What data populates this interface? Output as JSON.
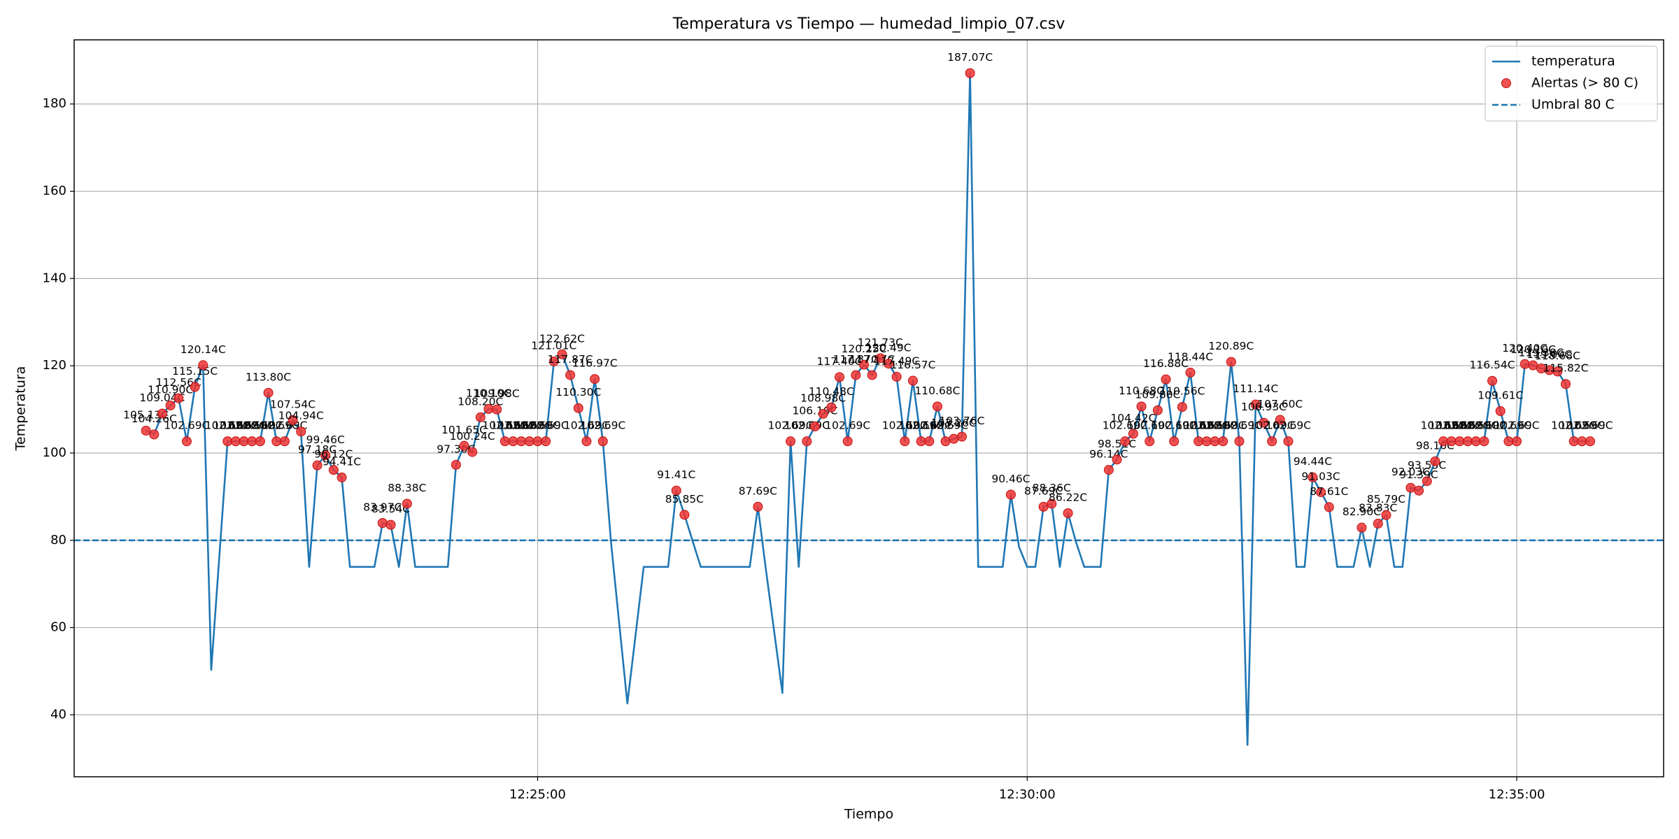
{
  "chart_data": {
    "type": "line",
    "title": "Temperatura vs Tiempo — humedad_limpio_07.csv",
    "xlabel": "Tiempo",
    "ylabel": "Temperatura",
    "x": [
      "12:21:00",
      "12:21:05",
      "12:21:10",
      "12:21:15",
      "12:21:20",
      "12:21:25",
      "12:21:30",
      "12:21:35",
      "12:21:40",
      "12:21:45",
      "12:21:50",
      "12:21:55",
      "12:22:00",
      "12:22:05",
      "12:22:10",
      "12:22:15",
      "12:22:20",
      "12:22:25",
      "12:22:30",
      "12:22:35",
      "12:22:40",
      "12:22:45",
      "12:22:50",
      "12:22:55",
      "12:23:00",
      "12:23:05",
      "12:23:10",
      "12:23:15",
      "12:23:20",
      "12:23:25",
      "12:23:30",
      "12:23:35",
      "12:23:40",
      "12:23:45",
      "12:23:50",
      "12:23:55",
      "12:24:00",
      "12:24:05",
      "12:24:10",
      "12:24:15",
      "12:24:20",
      "12:24:25",
      "12:24:30",
      "12:24:35",
      "12:24:40",
      "12:24:45",
      "12:24:50",
      "12:24:55",
      "12:25:00",
      "12:25:05",
      "12:25:10",
      "12:25:15",
      "12:25:20",
      "12:25:25",
      "12:25:30",
      "12:25:35",
      "12:25:40",
      "12:25:45",
      "12:25:50",
      "12:25:55",
      "12:26:00",
      "12:26:05",
      "12:26:10",
      "12:26:15",
      "12:26:20",
      "12:26:25",
      "12:26:30",
      "12:26:35",
      "12:26:40",
      "12:26:45",
      "12:26:50",
      "12:26:55",
      "12:27:00",
      "12:27:05",
      "12:27:10",
      "12:27:15",
      "12:27:20",
      "12:27:25",
      "12:27:30",
      "12:27:35",
      "12:27:40",
      "12:27:45",
      "12:27:50",
      "12:27:55",
      "12:28:00",
      "12:28:05",
      "12:28:10",
      "12:28:15",
      "12:28:20",
      "12:28:25",
      "12:28:30",
      "12:28:35",
      "12:28:40",
      "12:28:45",
      "12:28:50",
      "12:28:55",
      "12:29:00",
      "12:29:05",
      "12:29:10",
      "12:29:15",
      "12:29:20",
      "12:29:25",
      "12:29:30",
      "12:29:35",
      "12:29:40",
      "12:29:45",
      "12:29:50",
      "12:29:55",
      "12:30:00",
      "12:30:05",
      "12:30:10",
      "12:30:15",
      "12:30:20",
      "12:30:25",
      "12:30:30",
      "12:30:35",
      "12:30:40",
      "12:30:45",
      "12:30:50",
      "12:30:55",
      "12:31:00",
      "12:31:05",
      "12:31:10",
      "12:31:15",
      "12:31:20",
      "12:31:25",
      "12:31:30",
      "12:31:35",
      "12:31:40",
      "12:31:45",
      "12:31:50",
      "12:31:55",
      "12:32:00",
      "12:32:05",
      "12:32:10",
      "12:32:15",
      "12:32:20",
      "12:32:25",
      "12:32:30",
      "12:32:35",
      "12:32:40",
      "12:32:45",
      "12:32:50",
      "12:32:55",
      "12:33:00",
      "12:33:05",
      "12:33:10",
      "12:33:15",
      "12:33:20",
      "12:33:25",
      "12:33:30",
      "12:33:35",
      "12:33:40",
      "12:33:45",
      "12:33:50",
      "12:33:55",
      "12:34:00",
      "12:34:05",
      "12:34:10",
      "12:34:15",
      "12:34:20",
      "12:34:25",
      "12:34:30",
      "12:34:35",
      "12:34:40",
      "12:34:45",
      "12:34:50",
      "12:34:55",
      "12:35:00",
      "12:35:05",
      "12:35:10",
      "12:35:15",
      "12:35:20",
      "12:35:25",
      "12:35:30",
      "12:35:35",
      "12:35:40",
      "12:35:45"
    ],
    "series": [
      {
        "name": "temperatura",
        "type": "line",
        "color": "#1f77b4",
        "values": [
          105.13,
          104.26,
          109.04,
          110.9,
          112.56,
          102.69,
          115.15,
          120.14,
          50.3,
          76.5,
          102.69,
          102.69,
          102.69,
          102.69,
          102.69,
          113.8,
          102.69,
          102.69,
          107.54,
          104.94,
          73.9,
          97.18,
          99.46,
          96.12,
          94.41,
          73.9,
          73.9,
          73.9,
          73.9,
          83.97,
          83.54,
          73.9,
          88.38,
          73.9,
          73.9,
          73.9,
          73.9,
          73.9,
          97.3,
          101.65,
          100.24,
          108.2,
          110.1,
          109.98,
          102.69,
          102.69,
          102.69,
          102.69,
          102.69,
          102.69,
          121.01,
          122.62,
          117.87,
          110.3,
          102.69,
          116.97,
          102.69,
          79.5,
          61,
          42.6,
          58.2,
          73.9,
          73.9,
          73.9,
          73.9,
          91.41,
          85.85,
          79.8,
          73.9,
          73.9,
          73.9,
          73.9,
          73.9,
          73.9,
          73.9,
          87.69,
          73,
          59,
          45,
          102.69,
          73.9,
          102.69,
          106.1,
          108.98,
          110.48,
          117.4,
          102.69,
          117.87,
          120.25,
          117.87,
          121.73,
          120.49,
          117.49,
          102.69,
          116.57,
          102.69,
          102.69,
          110.68,
          102.69,
          103.26,
          103.76,
          187.07,
          73.9,
          73.9,
          73.9,
          73.9,
          90.46,
          78.5,
          73.9,
          73.9,
          87.69,
          88.36,
          73.9,
          86.22,
          79.5,
          73.9,
          73.9,
          73.9,
          96.14,
          98.51,
          102.69,
          104.42,
          110.68,
          102.69,
          109.8,
          116.88,
          102.69,
          110.56,
          118.44,
          102.69,
          102.69,
          102.69,
          102.69,
          120.89,
          102.69,
          33.1,
          111.14,
          106.93,
          102.69,
          107.6,
          102.69,
          73.9,
          73.9,
          94.44,
          91.03,
          87.61,
          73.9,
          73.9,
          73.9,
          82.9,
          73.9,
          83.83,
          85.79,
          73.9,
          73.9,
          92.03,
          91.39,
          93.55,
          98.1,
          102.69,
          102.69,
          102.69,
          102.69,
          102.69,
          102.69,
          116.54,
          109.61,
          102.69,
          102.69,
          120.4,
          120.1,
          119.38,
          119,
          118.68,
          115.82,
          102.69,
          102.69,
          102.69
        ]
      },
      {
        "name": "Alertas (> 80 C)",
        "type": "scatter",
        "color": "#ee3333",
        "values": [
          105.13,
          104.26,
          109.04,
          110.9,
          112.56,
          102.69,
          115.15,
          120.14,
          null,
          null,
          102.69,
          102.69,
          102.69,
          102.69,
          102.69,
          113.8,
          102.69,
          102.69,
          107.54,
          104.94,
          null,
          97.18,
          99.46,
          96.12,
          94.41,
          null,
          null,
          null,
          null,
          83.97,
          83.54,
          null,
          88.38,
          null,
          null,
          null,
          null,
          null,
          97.3,
          101.65,
          100.24,
          108.2,
          110.1,
          109.98,
          102.69,
          102.69,
          102.69,
          102.69,
          102.69,
          102.69,
          121.01,
          122.62,
          117.87,
          110.3,
          102.69,
          116.97,
          102.69,
          null,
          null,
          null,
          null,
          null,
          null,
          null,
          null,
          91.41,
          85.85,
          null,
          null,
          null,
          null,
          null,
          null,
          null,
          null,
          87.69,
          null,
          null,
          null,
          102.69,
          null,
          102.69,
          106.1,
          108.98,
          110.48,
          117.4,
          102.69,
          117.87,
          120.25,
          117.87,
          121.73,
          120.49,
          117.49,
          102.69,
          116.57,
          102.69,
          102.69,
          110.68,
          102.69,
          103.26,
          103.76,
          187.07,
          null,
          null,
          null,
          null,
          90.46,
          null,
          null,
          null,
          87.69,
          88.36,
          null,
          86.22,
          null,
          null,
          null,
          null,
          96.14,
          98.51,
          102.69,
          104.42,
          110.68,
          102.69,
          109.8,
          116.88,
          102.69,
          110.56,
          118.44,
          102.69,
          102.69,
          102.69,
          102.69,
          120.89,
          102.69,
          null,
          111.14,
          106.93,
          102.69,
          107.6,
          102.69,
          null,
          null,
          94.44,
          91.03,
          87.61,
          null,
          null,
          null,
          82.9,
          null,
          83.83,
          85.79,
          null,
          null,
          92.03,
          91.39,
          93.55,
          98.1,
          102.69,
          102.69,
          102.69,
          102.69,
          102.69,
          102.69,
          116.54,
          109.61,
          102.69,
          102.69,
          120.4,
          120.1,
          119.38,
          119,
          118.68,
          115.82,
          102.69,
          102.69,
          102.69
        ],
        "value_labels": [
          "105.13C",
          "104.26C",
          "109.04C",
          "110.90C",
          "112.56C",
          "102.69C",
          "115.15C",
          "120.14C",
          null,
          null,
          "102.69C",
          "102.69C",
          "102.69C",
          "102.69C",
          "102.69C",
          "113.80C",
          "102.69C",
          "102.69C",
          "107.54C",
          "104.94C",
          null,
          "97.18C",
          "99.46C",
          "96.12C",
          "94.41C",
          null,
          null,
          null,
          null,
          "83.97C",
          "83.54C",
          null,
          "88.38C",
          null,
          null,
          null,
          null,
          null,
          "97.30C",
          "101.65C",
          "100.24C",
          "108.20C",
          "110.10C",
          "109.98C",
          "102.69C",
          "102.69C",
          "102.69C",
          "102.69C",
          "102.69C",
          "102.69C",
          "121.01C",
          "122.62C",
          "117.87C",
          "110.30C",
          "102.69C",
          "116.97C",
          "102.69C",
          null,
          null,
          null,
          null,
          null,
          null,
          null,
          null,
          "91.41C",
          "85.85C",
          null,
          null,
          null,
          null,
          null,
          null,
          null,
          null,
          "87.69C",
          null,
          null,
          null,
          "102.69C",
          null,
          "102.69C",
          "106.10C",
          "108.98C",
          "110.48C",
          "117.40C",
          "102.69C",
          "117.87C",
          "120.25C",
          "117.87C",
          "121.73C",
          "120.49C",
          "117.49C",
          "102.69C",
          "116.57C",
          "102.69C",
          "102.69C",
          "110.68C",
          "102.69C",
          "103.26C",
          "103.76C",
          "187.07C",
          null,
          null,
          null,
          null,
          "90.46C",
          null,
          null,
          null,
          "87.69C",
          "88.36C",
          null,
          "86.22C",
          null,
          null,
          null,
          null,
          "96.14C",
          "98.51C",
          "102.69C",
          "104.42C",
          "110.68C",
          "102.69C",
          "109.80C",
          "116.88C",
          "102.69C",
          "110.56C",
          "118.44C",
          "102.69C",
          "102.69C",
          "102.69C",
          "102.69C",
          "120.89C",
          "102.69C",
          null,
          "111.14C",
          "106.93C",
          "102.69C",
          "107.60C",
          "102.69C",
          null,
          null,
          "94.44C",
          "91.03C",
          "87.61C",
          null,
          null,
          null,
          "82.90C",
          null,
          "83.83C",
          "85.79C",
          null,
          null,
          "92.03C",
          "91.39C",
          "93.55C",
          "98.10C",
          "102.69C",
          "102.69C",
          "102.69C",
          "102.69C",
          "102.69C",
          "102.69C",
          "116.54C",
          "109.61C",
          "102.69C",
          "102.69C",
          "120.40C",
          "120.10C",
          "119.38C",
          "119.00C",
          "118.68C",
          "115.82C",
          "102.69C",
          "102.69C",
          "102.69C"
        ]
      }
    ],
    "threshold": {
      "name": "Umbral 80 C",
      "value": 80,
      "color": "#1f77b4",
      "dashed": true
    },
    "xlim": [
      "12:20:16",
      "12:36:30"
    ],
    "xticks": [
      "12:25:00",
      "12:30:00",
      "12:35:00"
    ],
    "ylim": [
      25.8,
      194.7
    ],
    "yticks": [
      40,
      60,
      80,
      100,
      120,
      140,
      160,
      180
    ],
    "grid": true,
    "legend": "upper right"
  }
}
